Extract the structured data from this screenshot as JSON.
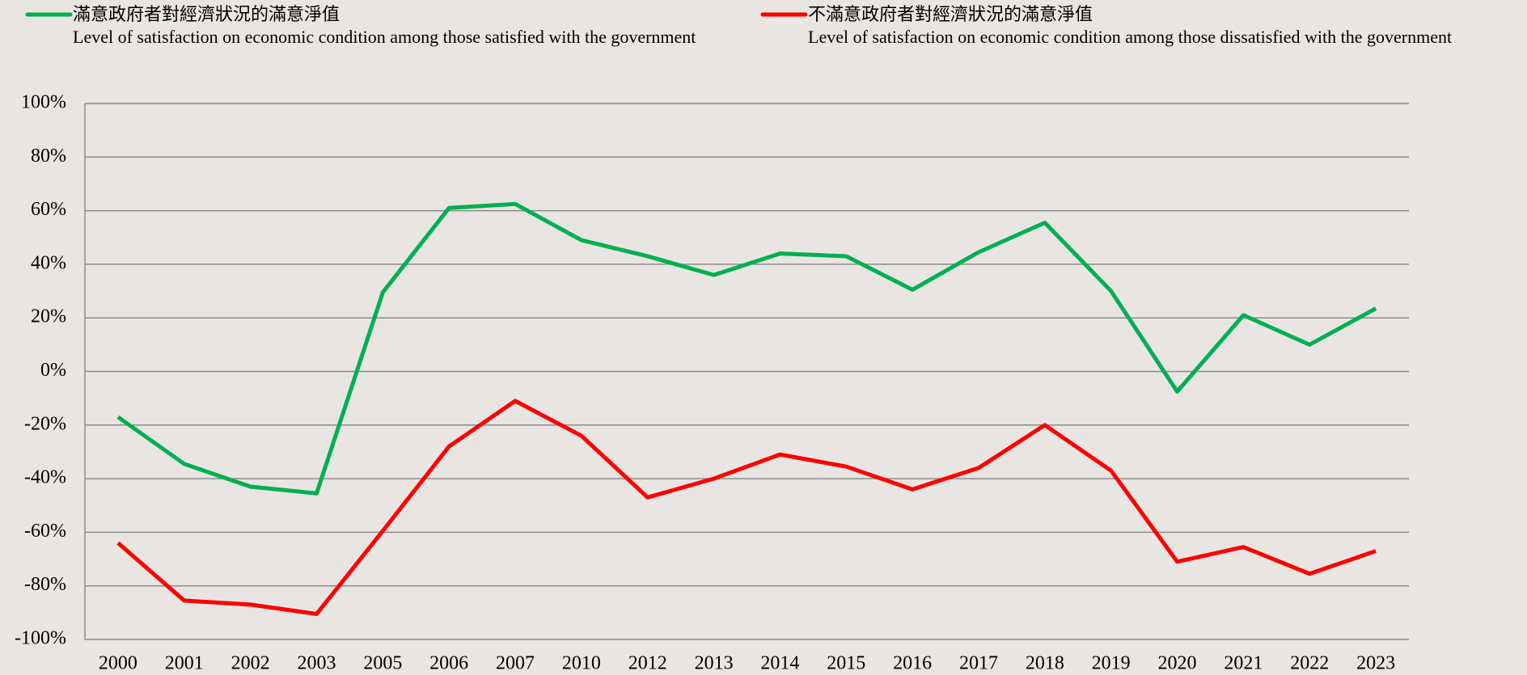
{
  "chart_data": {
    "type": "line",
    "categories": [
      "2000",
      "2001",
      "2002",
      "2003",
      "2005",
      "2006",
      "2007",
      "2010",
      "2012",
      "2013",
      "2014",
      "2015",
      "2016",
      "2017",
      "2018",
      "2019",
      "2020",
      "2021",
      "2022",
      "2023"
    ],
    "series": [
      {
        "name": "滿意政府者對經濟狀況的滿意淨值",
        "subtitle": "Level of satisfaction on economic condition among those satisfied with the government",
        "color": "#00b050",
        "values": [
          -17,
          -34.5,
          -43,
          -45.5,
          29.5,
          61,
          62.5,
          49,
          43,
          36,
          44,
          43,
          30.5,
          44.5,
          55.5,
          30,
          -7.5,
          21,
          10,
          23.5
        ]
      },
      {
        "name": "不滿意政府者對經濟狀況的滿意淨值",
        "subtitle": "Level of satisfaction on economic condition among those dissatisfied with the government",
        "color": "#ff0000",
        "values": [
          -64,
          -85.5,
          -87,
          -90.5,
          -59.5,
          -28,
          -11,
          -24,
          -47,
          -40,
          -31,
          -35.5,
          -44,
          -36,
          -20,
          -37,
          -71,
          -65.5,
          -75.5,
          -67
        ]
      }
    ],
    "ylim": [
      -100,
      100
    ],
    "yticks": [
      {
        "value": -100,
        "label": "-100%"
      },
      {
        "value": -80,
        "label": "-80%"
      },
      {
        "value": -60,
        "label": "-60%"
      },
      {
        "value": -40,
        "label": "-40%"
      },
      {
        "value": -20,
        "label": "-20%"
      },
      {
        "value": 0,
        "label": "0%"
      },
      {
        "value": 20,
        "label": "20%"
      },
      {
        "value": 40,
        "label": "40%"
      },
      {
        "value": 60,
        "label": "60%"
      },
      {
        "value": 80,
        "label": "80%"
      },
      {
        "value": 100,
        "label": "100%"
      }
    ],
    "grid": true
  }
}
